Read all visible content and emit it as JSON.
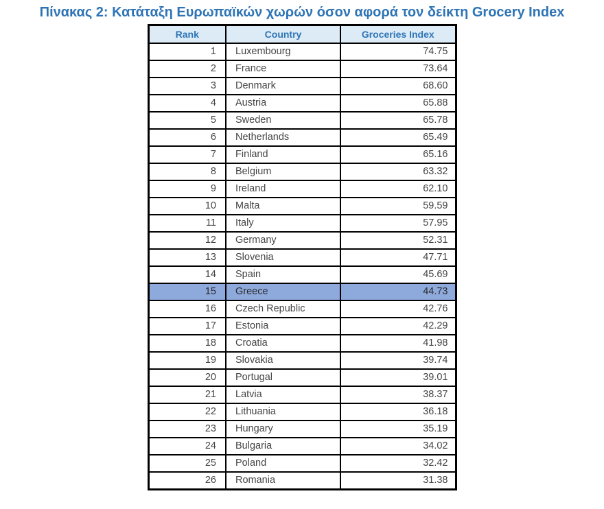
{
  "title": "Πίνακας 2: Κατάταξη Ευρωπαϊκών χωρών όσον αφορά τον δείκτη Grocery Index",
  "colors": {
    "title_text": "#2E74B5",
    "header_bg": "#DDEBF7",
    "header_text": "#2E75B6",
    "highlight_bg": "#8EA9DB",
    "border": "#000000",
    "cell_text": "#454545"
  },
  "chart_data": {
    "type": "table",
    "title": "Πίνακας 2: Κατάταξη Ευρωπαϊκών χωρών όσον αφορά τον δείκτη Grocery Index",
    "columns": [
      "Rank",
      "Country",
      "Groceries Index"
    ],
    "highlighted_rank": 15,
    "rows": [
      {
        "rank": "1",
        "country": "Luxembourg",
        "index": "74.75"
      },
      {
        "rank": "2",
        "country": "France",
        "index": "73.64"
      },
      {
        "rank": "3",
        "country": "Denmark",
        "index": "68.60"
      },
      {
        "rank": "4",
        "country": "Austria",
        "index": "65.88"
      },
      {
        "rank": "5",
        "country": "Sweden",
        "index": "65.78"
      },
      {
        "rank": "6",
        "country": "Netherlands",
        "index": "65.49"
      },
      {
        "rank": "7",
        "country": "Finland",
        "index": "65.16"
      },
      {
        "rank": "8",
        "country": "Belgium",
        "index": "63.32"
      },
      {
        "rank": "9",
        "country": "Ireland",
        "index": "62.10"
      },
      {
        "rank": "10",
        "country": "Malta",
        "index": "59.59"
      },
      {
        "rank": "11",
        "country": "Italy",
        "index": "57.95"
      },
      {
        "rank": "12",
        "country": "Germany",
        "index": "52.31"
      },
      {
        "rank": "13",
        "country": "Slovenia",
        "index": "47.71"
      },
      {
        "rank": "14",
        "country": "Spain",
        "index": "45.69"
      },
      {
        "rank": "15",
        "country": "Greece",
        "index": "44.73"
      },
      {
        "rank": "16",
        "country": "Czech Republic",
        "index": "42.76"
      },
      {
        "rank": "17",
        "country": "Estonia",
        "index": "42.29"
      },
      {
        "rank": "18",
        "country": "Croatia",
        "index": "41.98"
      },
      {
        "rank": "19",
        "country": "Slovakia",
        "index": "39.74"
      },
      {
        "rank": "20",
        "country": "Portugal",
        "index": "39.01"
      },
      {
        "rank": "21",
        "country": "Latvia",
        "index": "38.37"
      },
      {
        "rank": "22",
        "country": "Lithuania",
        "index": "36.18"
      },
      {
        "rank": "23",
        "country": "Hungary",
        "index": "35.19"
      },
      {
        "rank": "24",
        "country": "Bulgaria",
        "index": "34.02"
      },
      {
        "rank": "25",
        "country": "Poland",
        "index": "32.42"
      },
      {
        "rank": "26",
        "country": "Romania",
        "index": "31.38"
      }
    ]
  }
}
